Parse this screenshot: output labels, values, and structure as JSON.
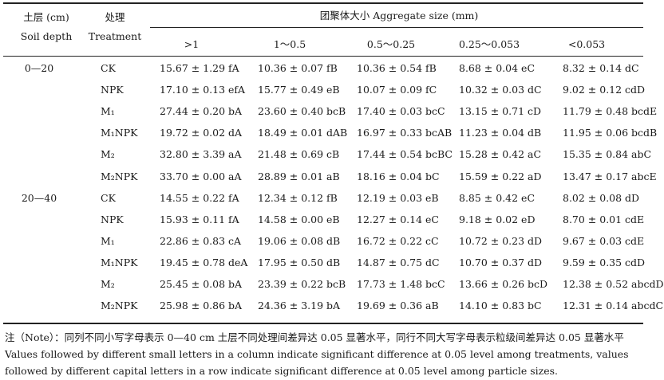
{
  "table": {
    "header": {
      "depth_cn": "土层 (cm)",
      "depth_en": "Soil depth",
      "treatment_cn": "处理",
      "treatment_en": "Treatment",
      "group": "团聚体大小 Aggregate size (mm)",
      "size_cols": [
        ">1",
        "1～0.5",
        "0.5～0.25",
        "0.25～0.053",
        "<0.053"
      ]
    },
    "rows": [
      {
        "depth": "0—20",
        "treatment": "CK",
        "values": [
          "15.67 ± 1.29 fA",
          "10.36 ± 0.07 fB",
          "10.36 ± 0.54 fB",
          "8.68 ± 0.04 eC",
          "8.32 ± 0.14 dC"
        ]
      },
      {
        "depth": "",
        "treatment": "NPK",
        "values": [
          "17.10 ± 0.13 efA",
          "15.77 ± 0.49 eB",
          "10.07 ± 0.09 fC",
          "10.32 ± 0.03 dC",
          "9.02 ± 0.12 cdD"
        ]
      },
      {
        "depth": "",
        "treatment": "M₁",
        "values": [
          "27.44 ± 0.20 bA",
          "23.60 ± 0.40 bcB",
          "17.40 ± 0.03 bcC",
          "13.15 ± 0.71 cD",
          "11.79 ± 0.48 bcdE"
        ]
      },
      {
        "depth": "",
        "treatment": "M₁NPK",
        "values": [
          "19.72 ± 0.02 dA",
          "18.49 ± 0.01 dAB",
          "16.97 ± 0.33 bcAB",
          "11.23 ± 0.04 dB",
          "11.95 ± 0.06 bcdB"
        ]
      },
      {
        "depth": "",
        "treatment": "M₂",
        "values": [
          "32.80 ± 3.39 aA",
          "21.48 ± 0.69 cB",
          "17.44 ± 0.54 bcBC",
          "15.28 ± 0.42 aC",
          "15.35 ± 0.84 abC"
        ]
      },
      {
        "depth": "",
        "treatment": "M₂NPK",
        "values": [
          "33.70 ± 0.00 aA",
          "28.89 ± 0.01 aB",
          "18.16 ± 0.04 bC",
          "15.59 ± 0.22 aD",
          "13.47 ± 0.17 abcE"
        ]
      },
      {
        "depth": "20—40",
        "treatment": "CK",
        "values": [
          "14.55 ± 0.22 fA",
          "12.34 ± 0.12 fB",
          "12.19 ± 0.03 eB",
          "8.85 ± 0.42 eC",
          "8.02 ± 0.08 dD"
        ]
      },
      {
        "depth": "",
        "treatment": "NPK",
        "values": [
          "15.93 ± 0.11 fA",
          "14.58 ± 0.00 eB",
          "12.27 ± 0.14 eC",
          "9.18 ± 0.02 eD",
          "8.70 ± 0.01 cdE"
        ]
      },
      {
        "depth": "",
        "treatment": "M₁",
        "values": [
          "22.86 ± 0.83 cA",
          "19.06 ± 0.08 dB",
          "16.72 ± 0.22 cC",
          "10.72 ± 0.23 dD",
          "9.67 ± 0.03 cdE"
        ]
      },
      {
        "depth": "",
        "treatment": "M₁NPK",
        "values": [
          "19.45 ± 0.78 deA",
          "17.95 ± 0.50 dB",
          "14.87 ± 0.75 dC",
          "10.70 ± 0.37 dD",
          "9.59 ± 0.35 cdD"
        ]
      },
      {
        "depth": "",
        "treatment": "M₂",
        "values": [
          "25.45 ± 0.08 bA",
          "23.39 ± 0.22 bcB",
          "17.73 ± 1.48 bcC",
          "13.66 ± 0.26 bcD",
          "12.38 ± 0.52 abcdD"
        ]
      },
      {
        "depth": "",
        "treatment": "M₂NPK",
        "values": [
          "25.98 ± 0.86 bA",
          "24.36 ± 3.19 bA",
          "19.69 ± 0.36 aB",
          "14.10 ± 0.83 bC",
          "12.31 ± 0.14 abcdC"
        ]
      }
    ]
  },
  "note": "注（Note）：同列不同小写字母表示 0—40 cm 土层不同处理间差异达 0.05 显著水平，同行不同大写字母表示粒级间差异达 0.05 显著水平 Values followed by different small letters in a column indicate significant difference at 0.05 level among treatments, values followed by different capital letters in a row indicate significant difference at 0.05 level among particle sizes."
}
